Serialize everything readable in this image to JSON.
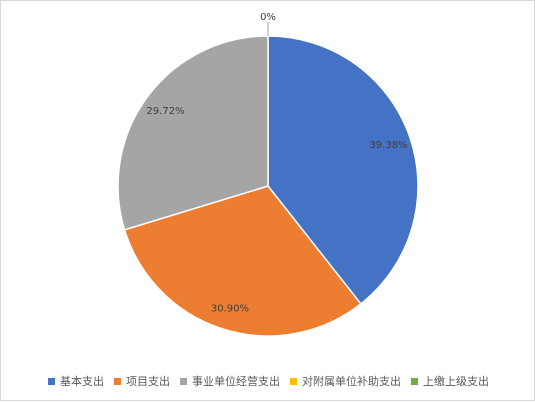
{
  "chart_data": {
    "type": "pie",
    "title": "",
    "slices": [
      {
        "name": "基本支出",
        "value": 39.38,
        "label": "39.38%",
        "color": "#4472C4"
      },
      {
        "name": "项目支出",
        "value": 30.9,
        "label": "30.90%",
        "color": "#ED7D31"
      },
      {
        "name": "事业单位经营支出",
        "value": 29.72,
        "label": "29.72%",
        "color": "#A5A5A5"
      },
      {
        "name": "对附属单位补助支出",
        "value": 0,
        "label": "0%",
        "color": "#FFC000"
      },
      {
        "name": "上缴上级支出",
        "value": 0,
        "label": "",
        "color": "#70AD47"
      }
    ],
    "legend_position": "bottom"
  }
}
